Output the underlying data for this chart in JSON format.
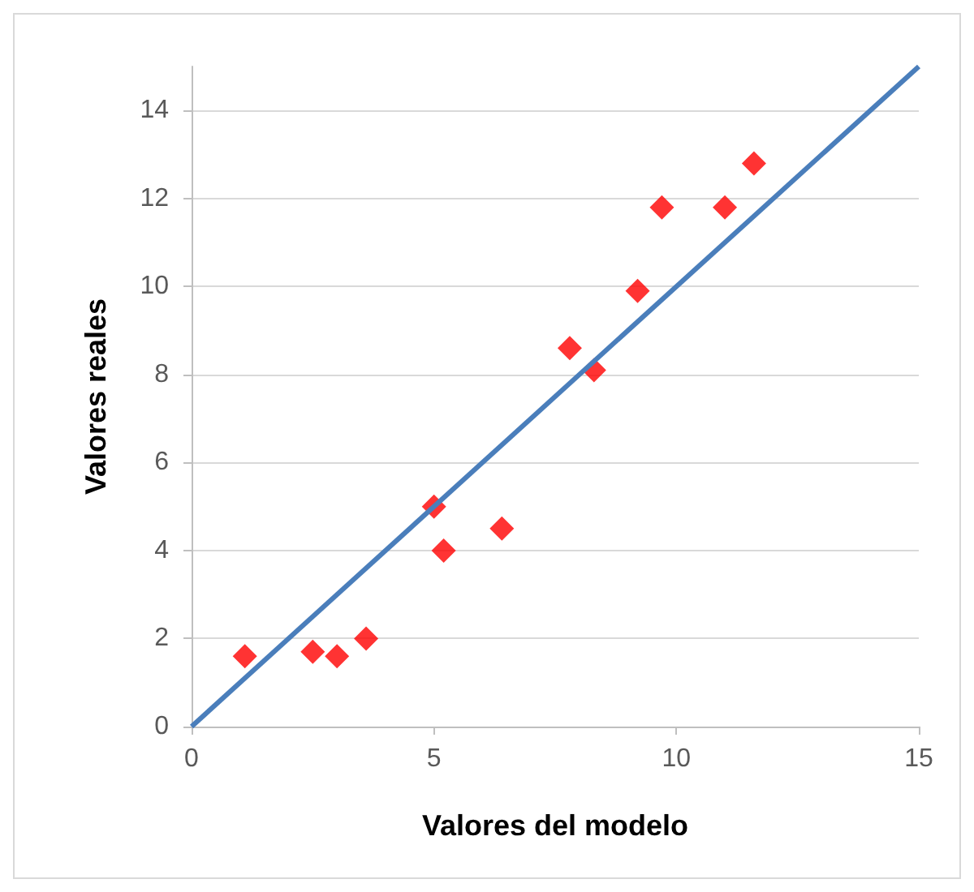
{
  "chart_data": {
    "type": "scatter",
    "xlabel": "Valores del modelo",
    "ylabel": "Valores reales",
    "xlim": [
      0,
      15
    ],
    "xticks": [
      0,
      5,
      10,
      15
    ],
    "ylim": [
      0,
      15
    ],
    "yticks": [
      0,
      2,
      4,
      6,
      8,
      10,
      12,
      14
    ],
    "grid": "y",
    "marker": "diamond",
    "series": [
      {
        "color": "#ff0000",
        "x": [
          1.1,
          2.5,
          3.0,
          3.6,
          5.0,
          5.2,
          6.4,
          7.8,
          8.3,
          9.2,
          9.7,
          11.0,
          11.6
        ],
        "values": [
          1.6,
          1.7,
          1.6,
          2.0,
          5.0,
          4.0,
          4.5,
          8.6,
          8.1,
          9.9,
          11.8,
          11.8,
          12.8
        ]
      },
      {
        "type": "line",
        "color": "#4a7ebb",
        "marker": "none",
        "x": [
          0,
          15
        ],
        "values": [
          0,
          15
        ]
      }
    ]
  }
}
